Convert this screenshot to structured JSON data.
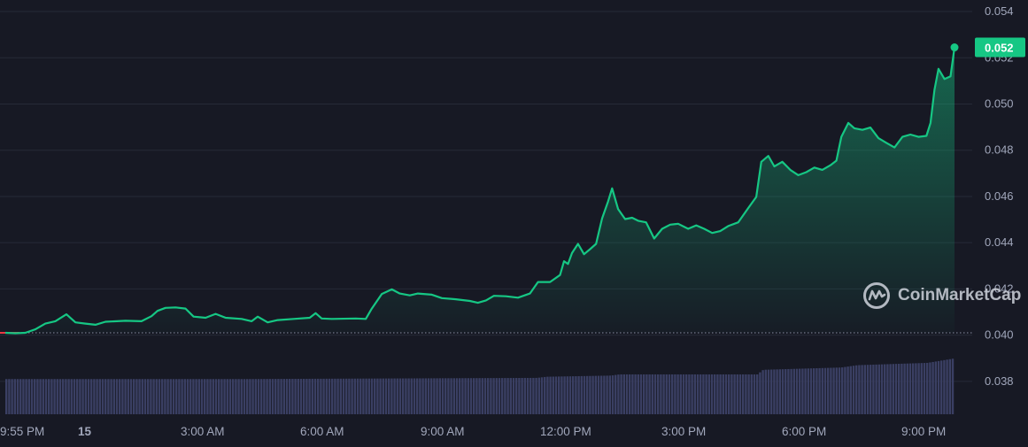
{
  "chart_data": {
    "type": "area",
    "title": "",
    "xlabel": "",
    "ylabel": "",
    "ylim": [
      0.0365,
      0.0545
    ],
    "y_ticks": [
      "0.054",
      "0.052",
      "0.050",
      "0.048",
      "0.046",
      "0.044",
      "0.042",
      "0.040",
      "0.038"
    ],
    "x_ticks": [
      "9:55 PM",
      "15",
      "3:00 AM",
      "6:00 AM",
      "9:00 AM",
      "12:00 PM",
      "3:00 PM",
      "6:00 PM",
      "9:00 PM"
    ],
    "baseline": 0.0401,
    "last_price_label": "0.052",
    "grid": true,
    "series": [
      {
        "values": [
          [
            0,
            0.0401
          ],
          [
            0.5,
            0.04008
          ],
          [
            1,
            0.0401
          ],
          [
            1.5,
            0.04025
          ],
          [
            2,
            0.0405
          ],
          [
            2.5,
            0.0406
          ],
          [
            3.05,
            0.0409
          ],
          [
            3.5,
            0.04055
          ],
          [
            4,
            0.0405
          ],
          [
            4.5,
            0.04045
          ],
          [
            5,
            0.04058
          ],
          [
            6,
            0.04062
          ],
          [
            6.8,
            0.0406
          ],
          [
            7.3,
            0.04082
          ],
          [
            7.6,
            0.04105
          ],
          [
            8,
            0.04118
          ],
          [
            8.5,
            0.0412
          ],
          [
            9,
            0.04115
          ],
          [
            9.4,
            0.0408
          ],
          [
            10,
            0.04075
          ],
          [
            10.5,
            0.04092
          ],
          [
            11,
            0.04075
          ],
          [
            11.8,
            0.0407
          ],
          [
            12.3,
            0.0406
          ],
          [
            12.6,
            0.0408
          ],
          [
            13.1,
            0.04055
          ],
          [
            13.6,
            0.04065
          ],
          [
            14.4,
            0.0407
          ],
          [
            15.2,
            0.04075
          ],
          [
            15.5,
            0.04095
          ],
          [
            15.8,
            0.04072
          ],
          [
            16.3,
            0.0407
          ],
          [
            17.5,
            0.04072
          ],
          [
            18,
            0.0407
          ],
          [
            18.3,
            0.04115
          ],
          [
            18.8,
            0.04178
          ],
          [
            19.3,
            0.04198
          ],
          [
            19.7,
            0.0418
          ],
          [
            20.2,
            0.04172
          ],
          [
            20.6,
            0.0418
          ],
          [
            21.3,
            0.04175
          ],
          [
            21.8,
            0.0416
          ],
          [
            22.5,
            0.04155
          ],
          [
            23.2,
            0.04148
          ],
          [
            23.6,
            0.0414
          ],
          [
            24,
            0.0415
          ],
          [
            24.4,
            0.0417
          ],
          [
            25,
            0.04168
          ],
          [
            25.6,
            0.04162
          ],
          [
            26.2,
            0.0418
          ],
          [
            26.6,
            0.0423
          ],
          [
            27.2,
            0.0423
          ],
          [
            27.7,
            0.0426
          ],
          [
            27.9,
            0.0432
          ],
          [
            28.1,
            0.04308
          ],
          [
            28.3,
            0.04355
          ],
          [
            28.6,
            0.04395
          ],
          [
            28.9,
            0.0435
          ],
          [
            29.2,
            0.04372
          ],
          [
            29.5,
            0.04395
          ],
          [
            29.8,
            0.04505
          ],
          [
            30.1,
            0.04578
          ],
          [
            30.3,
            0.04635
          ],
          [
            30.6,
            0.04545
          ],
          [
            30.95,
            0.04502
          ],
          [
            31.3,
            0.04508
          ],
          [
            31.6,
            0.04495
          ],
          [
            32,
            0.04488
          ],
          [
            32.4,
            0.04418
          ],
          [
            32.8,
            0.0446
          ],
          [
            33.2,
            0.04478
          ],
          [
            33.6,
            0.04482
          ],
          [
            34.1,
            0.0446
          ],
          [
            34.5,
            0.04475
          ],
          [
            34.9,
            0.0446
          ],
          [
            35.3,
            0.04442
          ],
          [
            35.7,
            0.0445
          ],
          [
            36.1,
            0.04472
          ],
          [
            36.6,
            0.04488
          ],
          [
            37.1,
            0.0455
          ],
          [
            37.5,
            0.04598
          ],
          [
            37.75,
            0.0475
          ],
          [
            38.1,
            0.04775
          ],
          [
            38.4,
            0.0473
          ],
          [
            38.8,
            0.0475
          ],
          [
            39.2,
            0.04715
          ],
          [
            39.6,
            0.04692
          ],
          [
            40,
            0.04705
          ],
          [
            40.4,
            0.04725
          ],
          [
            40.8,
            0.04715
          ],
          [
            41.2,
            0.04735
          ],
          [
            41.5,
            0.04755
          ],
          [
            41.75,
            0.04858
          ],
          [
            42.1,
            0.04918
          ],
          [
            42.4,
            0.04895
          ],
          [
            42.8,
            0.04888
          ],
          [
            43.2,
            0.04898
          ],
          [
            43.6,
            0.04852
          ],
          [
            44,
            0.04832
          ],
          [
            44.4,
            0.04812
          ],
          [
            44.8,
            0.04858
          ],
          [
            45.2,
            0.04868
          ],
          [
            45.6,
            0.04858
          ],
          [
            46,
            0.04862
          ],
          [
            46.2,
            0.04918
          ],
          [
            46.4,
            0.05062
          ],
          [
            46.6,
            0.05152
          ],
          [
            46.9,
            0.05108
          ],
          [
            47.2,
            0.0512
          ],
          [
            47.4,
            0.05245
          ]
        ]
      }
    ],
    "volume": [
      [
        0,
        0.0381
      ],
      [
        12,
        0.0381
      ],
      [
        26.5,
        0.03815
      ],
      [
        27,
        0.0382
      ],
      [
        30.2,
        0.03825
      ],
      [
        30.6,
        0.0383
      ],
      [
        37.5,
        0.0383
      ],
      [
        37.8,
        0.0385
      ],
      [
        41.7,
        0.0386
      ],
      [
        42.5,
        0.0387
      ],
      [
        46,
        0.0388
      ],
      [
        47.4,
        0.039
      ]
    ],
    "colors": {
      "background": "#171924",
      "line": "#16c784",
      "area_top": "#16c784",
      "volume": "#3a3f63",
      "grid": "#262a37",
      "axis_text": "#a1a7bb",
      "last_price_bg": "#16c784",
      "pre_baseline_line": "#ea3943"
    }
  },
  "watermark": {
    "text": "CoinMarketCap",
    "icon": "coinmarketcap-logo-icon"
  }
}
